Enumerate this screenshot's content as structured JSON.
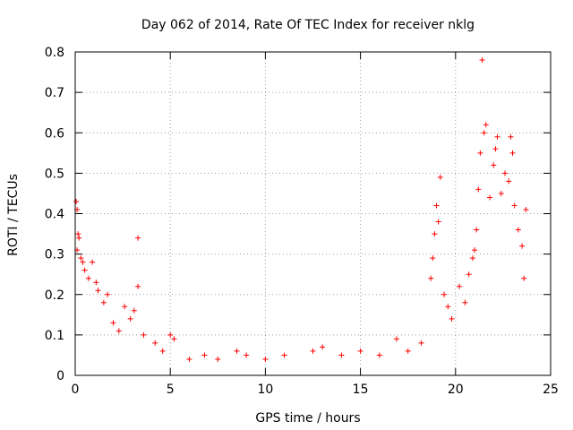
{
  "chart_data": {
    "type": "scatter",
    "title": "Day 062 of 2014, Rate Of TEC Index for receiver nklg",
    "xlabel": "GPS time / hours",
    "ylabel": "ROTI / TECUs",
    "xlim": [
      0,
      25
    ],
    "ylim": [
      0,
      0.8
    ],
    "x_ticks": [
      0,
      5,
      10,
      15,
      20,
      25
    ],
    "y_ticks": [
      0,
      0.1,
      0.2,
      0.3,
      0.4,
      0.5,
      0.6,
      0.7,
      0.8
    ],
    "grid": true,
    "marker": "+",
    "series": [
      {
        "name": "ROTI",
        "color": "#ff0000",
        "points": [
          [
            0.05,
            0.43
          ],
          [
            0.1,
            0.41
          ],
          [
            0.15,
            0.35
          ],
          [
            0.2,
            0.34
          ],
          [
            0.1,
            0.31
          ],
          [
            0.3,
            0.29
          ],
          [
            0.4,
            0.28
          ],
          [
            0.5,
            0.26
          ],
          [
            0.7,
            0.24
          ],
          [
            0.9,
            0.28
          ],
          [
            1.1,
            0.23
          ],
          [
            1.2,
            0.21
          ],
          [
            1.5,
            0.18
          ],
          [
            1.7,
            0.2
          ],
          [
            2.0,
            0.13
          ],
          [
            2.3,
            0.11
          ],
          [
            2.6,
            0.17
          ],
          [
            2.9,
            0.14
          ],
          [
            3.1,
            0.16
          ],
          [
            3.3,
            0.34
          ],
          [
            3.3,
            0.22
          ],
          [
            3.6,
            0.1
          ],
          [
            4.2,
            0.08
          ],
          [
            4.6,
            0.06
          ],
          [
            5.0,
            0.1
          ],
          [
            5.2,
            0.09
          ],
          [
            6.0,
            0.04
          ],
          [
            6.8,
            0.05
          ],
          [
            7.5,
            0.04
          ],
          [
            8.5,
            0.06
          ],
          [
            9.0,
            0.05
          ],
          [
            10.0,
            0.04
          ],
          [
            11.0,
            0.05
          ],
          [
            12.5,
            0.06
          ],
          [
            13.0,
            0.07
          ],
          [
            14.0,
            0.05
          ],
          [
            15.0,
            0.06
          ],
          [
            16.0,
            0.05
          ],
          [
            16.9,
            0.09
          ],
          [
            17.5,
            0.06
          ],
          [
            18.2,
            0.08
          ],
          [
            18.7,
            0.24
          ],
          [
            18.8,
            0.29
          ],
          [
            18.9,
            0.35
          ],
          [
            19.0,
            0.42
          ],
          [
            19.1,
            0.38
          ],
          [
            19.2,
            0.49
          ],
          [
            19.4,
            0.2
          ],
          [
            19.6,
            0.17
          ],
          [
            19.8,
            0.14
          ],
          [
            20.2,
            0.22
          ],
          [
            20.5,
            0.18
          ],
          [
            20.7,
            0.25
          ],
          [
            20.9,
            0.29
          ],
          [
            21.0,
            0.31
          ],
          [
            21.1,
            0.36
          ],
          [
            21.2,
            0.46
          ],
          [
            21.3,
            0.55
          ],
          [
            21.4,
            0.78
          ],
          [
            21.5,
            0.6
          ],
          [
            21.6,
            0.62
          ],
          [
            21.8,
            0.44
          ],
          [
            22.0,
            0.52
          ],
          [
            22.1,
            0.56
          ],
          [
            22.2,
            0.59
          ],
          [
            22.4,
            0.45
          ],
          [
            22.6,
            0.5
          ],
          [
            22.8,
            0.48
          ],
          [
            22.9,
            0.59
          ],
          [
            23.0,
            0.55
          ],
          [
            23.1,
            0.42
          ],
          [
            23.3,
            0.36
          ],
          [
            23.5,
            0.32
          ],
          [
            23.6,
            0.24
          ],
          [
            23.7,
            0.41
          ]
        ]
      }
    ]
  }
}
